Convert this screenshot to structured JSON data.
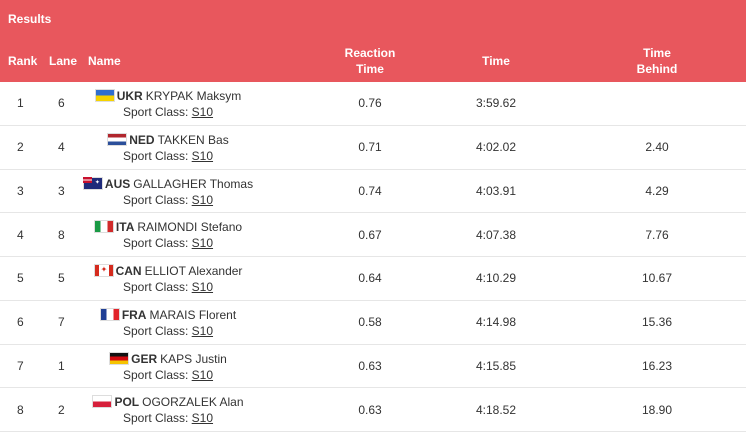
{
  "header": {
    "title": "Results",
    "columns": {
      "rank": "Rank",
      "lane": "Lane",
      "name": "Name",
      "reaction_line1": "Reaction",
      "reaction_line2": "Time",
      "time": "Time",
      "behind_line1": "Time",
      "behind_line2": "Behind"
    }
  },
  "sport_class_label": "Sport Class:",
  "rows": [
    {
      "rank": "1",
      "lane": "6",
      "noc": "UKR",
      "name": "KRYPAK Maksym",
      "sport_class": "S10",
      "reaction": "0.76",
      "time": "3:59.62",
      "behind": "",
      "flag": "ukr-flag-icon"
    },
    {
      "rank": "2",
      "lane": "4",
      "noc": "NED",
      "name": "TAKKEN Bas",
      "sport_class": "S10",
      "reaction": "0.71",
      "time": "4:02.02",
      "behind": "2.40",
      "flag": "ned-flag-icon"
    },
    {
      "rank": "3",
      "lane": "3",
      "noc": "AUS",
      "name": "GALLAGHER Thomas",
      "sport_class": "S10",
      "reaction": "0.74",
      "time": "4:03.91",
      "behind": "4.29",
      "flag": "aus-flag-icon"
    },
    {
      "rank": "4",
      "lane": "8",
      "noc": "ITA",
      "name": "RAIMONDI Stefano",
      "sport_class": "S10",
      "reaction": "0.67",
      "time": "4:07.38",
      "behind": "7.76",
      "flag": "ita-flag-icon"
    },
    {
      "rank": "5",
      "lane": "5",
      "noc": "CAN",
      "name": "ELLIOT Alexander",
      "sport_class": "S10",
      "reaction": "0.64",
      "time": "4:10.29",
      "behind": "10.67",
      "flag": "can-flag-icon"
    },
    {
      "rank": "6",
      "lane": "7",
      "noc": "FRA",
      "name": "MARAIS Florent",
      "sport_class": "S10",
      "reaction": "0.58",
      "time": "4:14.98",
      "behind": "15.36",
      "flag": "fra-flag-icon"
    },
    {
      "rank": "7",
      "lane": "1",
      "noc": "GER",
      "name": "KAPS Justin",
      "sport_class": "S10",
      "reaction": "0.63",
      "time": "4:15.85",
      "behind": "16.23",
      "flag": "ger-flag-icon"
    },
    {
      "rank": "8",
      "lane": "2",
      "noc": "POL",
      "name": "OGORZALEK Alan",
      "sport_class": "S10",
      "reaction": "0.63",
      "time": "4:18.52",
      "behind": "18.90",
      "flag": "pol-flag-icon"
    }
  ],
  "colors": {
    "header_bg": "#e8575d",
    "header_text": "#ffffff",
    "row_border": "#e6e6e6"
  }
}
